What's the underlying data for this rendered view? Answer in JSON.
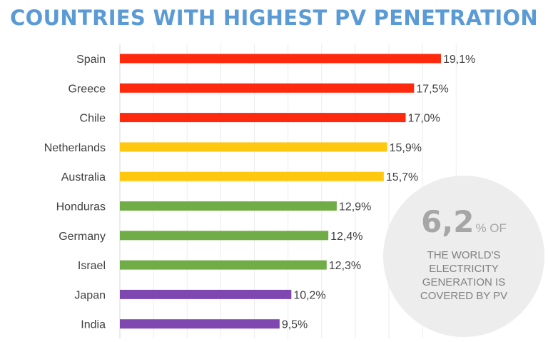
{
  "chart_data": {
    "type": "bar",
    "orientation": "horizontal",
    "title": "COUNTRIES WITH HIGHEST PV PENETRATION",
    "categories": [
      "Spain",
      "Greece",
      "Chile",
      "Netherlands",
      "Australia",
      "Honduras",
      "Germany",
      "Israel",
      "Japan",
      "India"
    ],
    "values": [
      19.1,
      17.5,
      17.0,
      15.9,
      15.7,
      12.9,
      12.4,
      12.3,
      10.2,
      9.5
    ],
    "value_labels": [
      "19,1%",
      "17,5%",
      "17,0%",
      "15,9%",
      "15,7%",
      "12,9%",
      "12,4%",
      "12,3%",
      "10,2%",
      "9,5%"
    ],
    "colors": [
      "#ff2a0e",
      "#ff2a0e",
      "#ff2a0e",
      "#ffc80f",
      "#ffc80f",
      "#70ad47",
      "#70ad47",
      "#70ad47",
      "#7e48b0",
      "#7e48b0"
    ],
    "xlim": [
      0,
      20
    ],
    "grid": true,
    "legend": "none"
  },
  "callout": {
    "number": "6,2",
    "unit": "% OF",
    "lines": [
      "THE WORLD'S",
      "ELECTRICITY",
      "GENERATION IS",
      "COVERED BY PV"
    ]
  }
}
